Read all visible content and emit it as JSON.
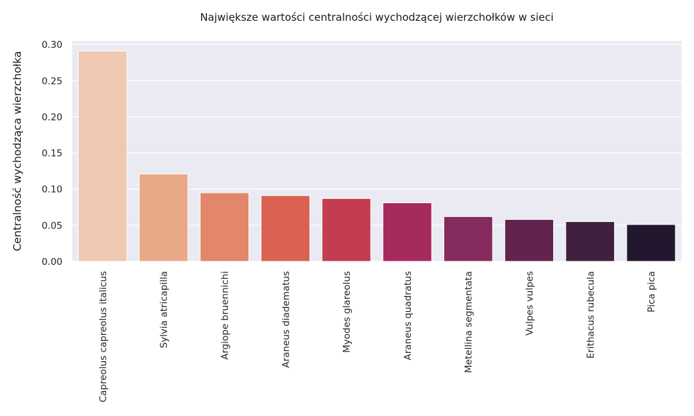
{
  "chart_data": {
    "type": "bar",
    "title": "Największe wartości centralności wychodzącej wierzchołków w sieci",
    "xlabel": "",
    "ylabel": "Centralność wychodząca wierzchołka",
    "categories": [
      "Capreolus capreolus italicus",
      "Sylvia atricapilla",
      "Argiope bruennichi",
      "Araneus diadematus",
      "Myodes glareolus",
      "Araneus quadratus",
      "Metellina segmentata",
      "Vulpes vulpes",
      "Erithacus rubecula",
      "Pica pica"
    ],
    "values": [
      0.291,
      0.121,
      0.095,
      0.091,
      0.087,
      0.081,
      0.062,
      0.058,
      0.055,
      0.051
    ],
    "colors": [
      "#efc8b2",
      "#e8a988",
      "#e2876a",
      "#d96253",
      "#c43c51",
      "#a62a5b",
      "#862b5d",
      "#62244f",
      "#40203f",
      "#23172f"
    ],
    "ylim": [
      0,
      0.305
    ],
    "yticks": [
      0.0,
      0.05,
      0.1,
      0.15,
      0.2,
      0.25,
      0.3
    ],
    "ytick_labels": [
      "0.00",
      "0.05",
      "0.10",
      "0.15",
      "0.20",
      "0.25",
      "0.30"
    ],
    "grid": true,
    "background": "#eaeaf2",
    "gridcolor": "#ffffff"
  }
}
